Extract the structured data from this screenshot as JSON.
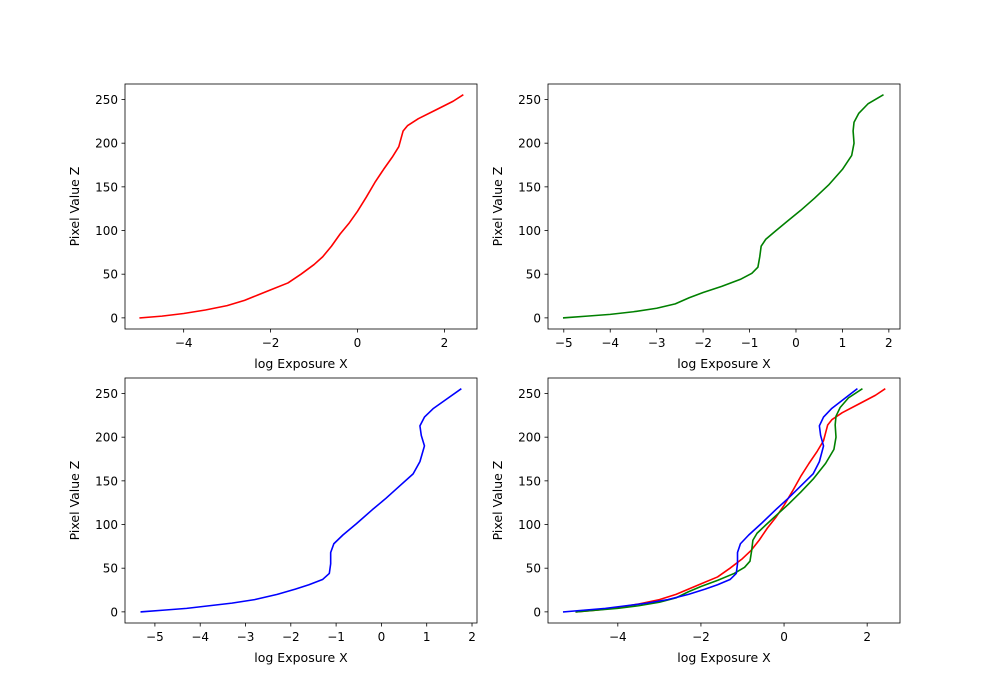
{
  "chart_data": [
    {
      "type": "line",
      "xlabel": "log Exposure X",
      "ylabel": "Pixel Value Z",
      "xlim": [
        -5.35,
        2.75
      ],
      "ylim": [
        -12.75,
        267.75
      ],
      "xticks": [
        -4,
        -2,
        0,
        2
      ],
      "yticks": [
        0,
        50,
        100,
        150,
        200,
        250
      ],
      "series": [
        {
          "color": "#ff0000",
          "points": [
            [
              -5.0,
              0
            ],
            [
              -4.5,
              2
            ],
            [
              -4.0,
              5
            ],
            [
              -3.5,
              9
            ],
            [
              -3.0,
              14
            ],
            [
              -2.6,
              20
            ],
            [
              -2.3,
              26
            ],
            [
              -2.0,
              32
            ],
            [
              -1.6,
              40
            ],
            [
              -1.3,
              50
            ],
            [
              -1.0,
              61
            ],
            [
              -0.8,
              70
            ],
            [
              -0.6,
              82
            ],
            [
              -0.4,
              96
            ],
            [
              -0.2,
              108
            ],
            [
              0.0,
              122
            ],
            [
              0.2,
              138
            ],
            [
              0.4,
              155
            ],
            [
              0.6,
              170
            ],
            [
              0.8,
              184
            ],
            [
              0.95,
              196
            ],
            [
              1.0,
              205
            ],
            [
              1.05,
              214
            ],
            [
              1.15,
              220
            ],
            [
              1.4,
              228
            ],
            [
              1.8,
              238
            ],
            [
              2.2,
              248
            ],
            [
              2.42,
              255
            ]
          ]
        }
      ]
    },
    {
      "type": "line",
      "xlabel": "log Exposure X",
      "ylabel": "Pixel Value Z",
      "xlim": [
        -5.34,
        2.24
      ],
      "ylim": [
        -12.75,
        267.75
      ],
      "xticks": [
        -5,
        -4,
        -3,
        -2,
        -1,
        0,
        1,
        2
      ],
      "yticks": [
        0,
        50,
        100,
        150,
        200,
        250
      ],
      "series": [
        {
          "color": "#008000",
          "points": [
            [
              -5.0,
              0
            ],
            [
              -4.5,
              2
            ],
            [
              -4.0,
              4
            ],
            [
              -3.5,
              7
            ],
            [
              -3.0,
              11
            ],
            [
              -2.6,
              16
            ],
            [
              -2.3,
              23
            ],
            [
              -2.0,
              29
            ],
            [
              -1.6,
              36
            ],
            [
              -1.2,
              44
            ],
            [
              -0.95,
              51
            ],
            [
              -0.82,
              58
            ],
            [
              -0.78,
              70
            ],
            [
              -0.75,
              82
            ],
            [
              -0.65,
              90
            ],
            [
              -0.45,
              99
            ],
            [
              -0.2,
              110
            ],
            [
              0.1,
              123
            ],
            [
              0.4,
              137
            ],
            [
              0.7,
              152
            ],
            [
              1.0,
              170
            ],
            [
              1.2,
              186
            ],
            [
              1.25,
              200
            ],
            [
              1.23,
              214
            ],
            [
              1.25,
              224
            ],
            [
              1.35,
              234
            ],
            [
              1.55,
              245
            ],
            [
              1.87,
              255
            ]
          ]
        }
      ]
    },
    {
      "type": "line",
      "xlabel": "log Exposure X",
      "ylabel": "Pixel Value Z",
      "xlim": [
        -5.66,
        2.11
      ],
      "ylim": [
        -12.75,
        267.75
      ],
      "xticks": [
        -5,
        -4,
        -3,
        -2,
        -1,
        0,
        1,
        2
      ],
      "yticks": [
        0,
        50,
        100,
        150,
        200,
        250
      ],
      "series": [
        {
          "color": "#0000ff",
          "points": [
            [
              -5.3,
              0
            ],
            [
              -4.8,
              2
            ],
            [
              -4.3,
              4
            ],
            [
              -3.8,
              7
            ],
            [
              -3.3,
              10
            ],
            [
              -2.8,
              14
            ],
            [
              -2.3,
              20
            ],
            [
              -1.9,
              26
            ],
            [
              -1.6,
              31
            ],
            [
              -1.3,
              37
            ],
            [
              -1.15,
              44
            ],
            [
              -1.12,
              55
            ],
            [
              -1.12,
              68
            ],
            [
              -1.05,
              78
            ],
            [
              -0.85,
              88
            ],
            [
              -0.55,
              101
            ],
            [
              -0.2,
              117
            ],
            [
              0.1,
              130
            ],
            [
              0.4,
              144
            ],
            [
              0.7,
              158
            ],
            [
              0.85,
              172
            ],
            [
              0.95,
              190
            ],
            [
              0.88,
              202
            ],
            [
              0.85,
              213
            ],
            [
              0.95,
              223
            ],
            [
              1.15,
              233
            ],
            [
              1.45,
              244
            ],
            [
              1.75,
              255
            ]
          ]
        }
      ]
    },
    {
      "type": "line",
      "xlabel": "log Exposure X",
      "ylabel": "Pixel Value Z",
      "xlim": [
        -5.68,
        2.79
      ],
      "ylim": [
        -12.75,
        267.75
      ],
      "xticks": [
        -4,
        -2,
        0,
        2
      ],
      "yticks": [
        0,
        50,
        100,
        150,
        200,
        250
      ],
      "series": [
        {
          "color": "#ff0000",
          "points": [
            [
              -5.0,
              0
            ],
            [
              -4.5,
              2
            ],
            [
              -4.0,
              5
            ],
            [
              -3.5,
              9
            ],
            [
              -3.0,
              14
            ],
            [
              -2.6,
              20
            ],
            [
              -2.3,
              26
            ],
            [
              -2.0,
              32
            ],
            [
              -1.6,
              40
            ],
            [
              -1.3,
              50
            ],
            [
              -1.0,
              61
            ],
            [
              -0.8,
              70
            ],
            [
              -0.6,
              82
            ],
            [
              -0.4,
              96
            ],
            [
              -0.2,
              108
            ],
            [
              0.0,
              122
            ],
            [
              0.2,
              138
            ],
            [
              0.4,
              155
            ],
            [
              0.6,
              170
            ],
            [
              0.8,
              184
            ],
            [
              0.95,
              196
            ],
            [
              1.0,
              205
            ],
            [
              1.05,
              214
            ],
            [
              1.15,
              220
            ],
            [
              1.4,
              228
            ],
            [
              1.8,
              238
            ],
            [
              2.2,
              248
            ],
            [
              2.42,
              255
            ]
          ]
        },
        {
          "color": "#008000",
          "points": [
            [
              -5.0,
              0
            ],
            [
              -4.5,
              2
            ],
            [
              -4.0,
              4
            ],
            [
              -3.5,
              7
            ],
            [
              -3.0,
              11
            ],
            [
              -2.6,
              16
            ],
            [
              -2.3,
              23
            ],
            [
              -2.0,
              29
            ],
            [
              -1.6,
              36
            ],
            [
              -1.2,
              44
            ],
            [
              -0.95,
              51
            ],
            [
              -0.82,
              58
            ],
            [
              -0.78,
              70
            ],
            [
              -0.75,
              82
            ],
            [
              -0.65,
              90
            ],
            [
              -0.45,
              99
            ],
            [
              -0.2,
              110
            ],
            [
              0.1,
              123
            ],
            [
              0.4,
              137
            ],
            [
              0.7,
              152
            ],
            [
              1.0,
              170
            ],
            [
              1.2,
              186
            ],
            [
              1.25,
              200
            ],
            [
              1.23,
              214
            ],
            [
              1.25,
              224
            ],
            [
              1.35,
              234
            ],
            [
              1.55,
              245
            ],
            [
              1.87,
              255
            ]
          ]
        },
        {
          "color": "#0000ff",
          "points": [
            [
              -5.3,
              0
            ],
            [
              -4.8,
              2
            ],
            [
              -4.3,
              4
            ],
            [
              -3.8,
              7
            ],
            [
              -3.3,
              10
            ],
            [
              -2.8,
              14
            ],
            [
              -2.3,
              20
            ],
            [
              -1.9,
              26
            ],
            [
              -1.6,
              31
            ],
            [
              -1.3,
              37
            ],
            [
              -1.15,
              44
            ],
            [
              -1.12,
              55
            ],
            [
              -1.12,
              68
            ],
            [
              -1.05,
              78
            ],
            [
              -0.85,
              88
            ],
            [
              -0.55,
              101
            ],
            [
              -0.2,
              117
            ],
            [
              0.1,
              130
            ],
            [
              0.4,
              144
            ],
            [
              0.7,
              158
            ],
            [
              0.85,
              172
            ],
            [
              0.95,
              190
            ],
            [
              0.88,
              202
            ],
            [
              0.85,
              213
            ],
            [
              0.95,
              223
            ],
            [
              1.15,
              233
            ],
            [
              1.45,
              244
            ],
            [
              1.75,
              255
            ]
          ]
        }
      ]
    }
  ]
}
